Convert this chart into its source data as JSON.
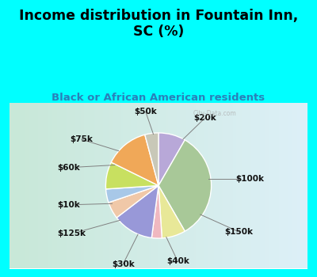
{
  "title": "Income distribution in Fountain Inn,\nSC (%)",
  "subtitle": "Black or African American residents",
  "title_color": "#000000",
  "subtitle_color": "#2980b9",
  "bg_cyan": "#00ffff",
  "bg_chart_left": "#c8e8d8",
  "bg_chart_right": "#e0f0f8",
  "watermark": "City-Data.com",
  "slices": [
    {
      "label": "$20k",
      "value": 8,
      "color": "#b8a8d8"
    },
    {
      "label": "$100k",
      "value": 32,
      "color": "#a8c898"
    },
    {
      "label": "$150k",
      "value": 7,
      "color": "#e8e898"
    },
    {
      "label": "$40k",
      "value": 3,
      "color": "#f0b8c0"
    },
    {
      "label": "$30k",
      "value": 12,
      "color": "#9898d8"
    },
    {
      "label": "$125k",
      "value": 5,
      "color": "#f0c8a8"
    },
    {
      "label": "$10k",
      "value": 4,
      "color": "#a8c8e8"
    },
    {
      "label": "$60k",
      "value": 8,
      "color": "#c8e060"
    },
    {
      "label": "$75k",
      "value": 13,
      "color": "#f0a858"
    },
    {
      "label": "$50k",
      "value": 4,
      "color": "#c8c8b8"
    }
  ],
  "label_fontsize": 7.5,
  "title_fontsize": 12.5,
  "subtitle_fontsize": 9.5
}
